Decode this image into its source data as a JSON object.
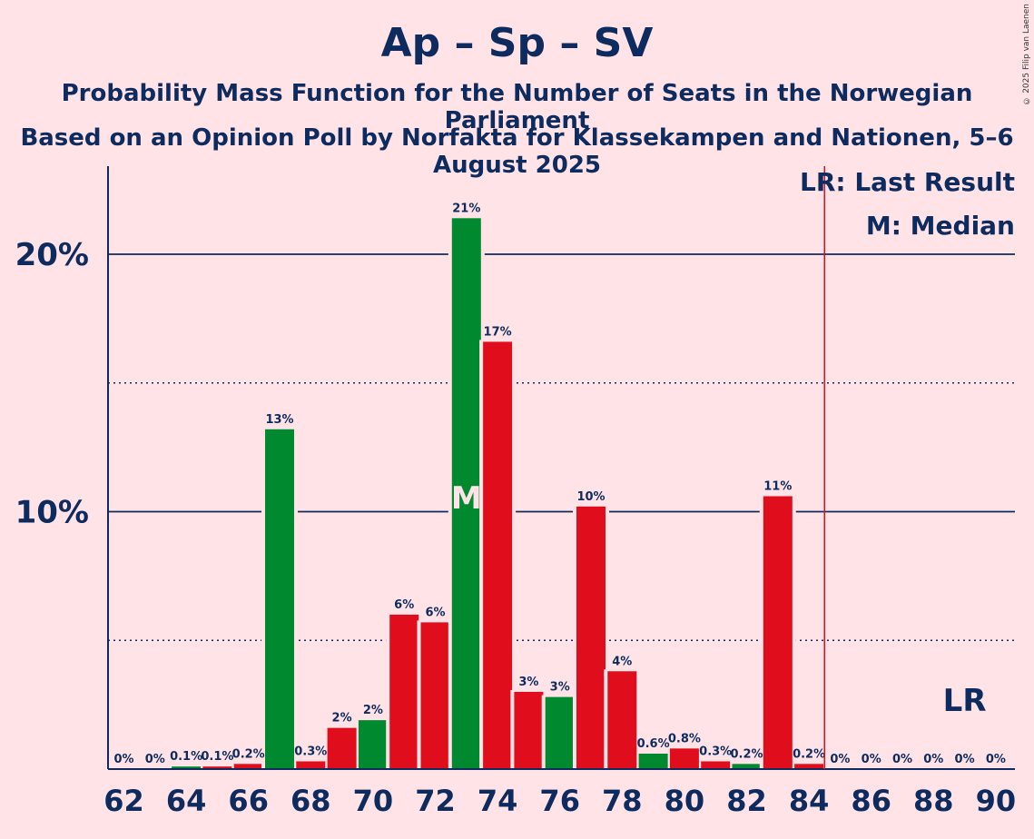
{
  "title": "Ap – Sp – SV",
  "subtitle1": "Probability Mass Function for the Number of Seats in the Norwegian Parliament",
  "subtitle2": "Based on an Opinion Poll by Norfakta for Klassekampen and Nationen, 5–6 August 2025",
  "copyright": "© 2025 Filip van Laenen",
  "legend": {
    "lr": "LR: Last Result",
    "m": "M: Median"
  },
  "markers": {
    "median_label": "M",
    "median_seat": 73,
    "last_result_label": "LR",
    "last_result_seat": 89
  },
  "colors": {
    "background": "#FFE3E6",
    "text": "#0D2B5E",
    "green": "#00892F",
    "red": "#E00E1C",
    "threshold_line": "#E00E1C"
  },
  "chart_data": {
    "type": "bar",
    "x": [
      62,
      63,
      64,
      65,
      66,
      67,
      68,
      69,
      70,
      71,
      72,
      73,
      74,
      75,
      76,
      77,
      78,
      79,
      80,
      81,
      82,
      83,
      84,
      85,
      86,
      87,
      88,
      89,
      90
    ],
    "values": [
      0,
      0,
      0.1,
      0.1,
      0.2,
      13.2,
      0.3,
      1.6,
      1.9,
      6.0,
      5.7,
      21.4,
      16.6,
      3.0,
      2.8,
      10.2,
      3.8,
      0.6,
      0.8,
      0.3,
      0.2,
      10.6,
      0.2,
      0,
      0,
      0,
      0,
      0,
      0
    ],
    "labels": [
      "0%",
      "0%",
      "0.1%",
      "0.1%",
      "0.2%",
      "13%",
      "0.3%",
      "2%",
      "2%",
      "6%",
      "6%",
      "21%",
      "17%",
      "3%",
      "3%",
      "10%",
      "4%",
      "0.6%",
      "0.8%",
      "0.3%",
      "0.2%",
      "11%",
      "0.2%",
      "0%",
      "0%",
      "0%",
      "0%",
      "0%",
      "0%"
    ],
    "bar_colors": [
      "red",
      "red",
      "green",
      "red",
      "red",
      "green",
      "red",
      "red",
      "green",
      "red",
      "red",
      "green",
      "red",
      "red",
      "green",
      "red",
      "red",
      "green",
      "red",
      "red",
      "green",
      "red",
      "red",
      "red",
      "red",
      "red",
      "red",
      "red",
      "red"
    ],
    "xtick_labels": [
      "62",
      "64",
      "66",
      "68",
      "70",
      "72",
      "74",
      "76",
      "78",
      "80",
      "82",
      "84",
      "86",
      "88",
      "90"
    ],
    "ytick_labels": [
      "10%",
      "20%"
    ],
    "ylim": [
      0,
      23.5
    ],
    "solid_gridlines": [
      10,
      20
    ],
    "dotted_gridlines": [
      5,
      15
    ],
    "majority_threshold": 84.5
  }
}
